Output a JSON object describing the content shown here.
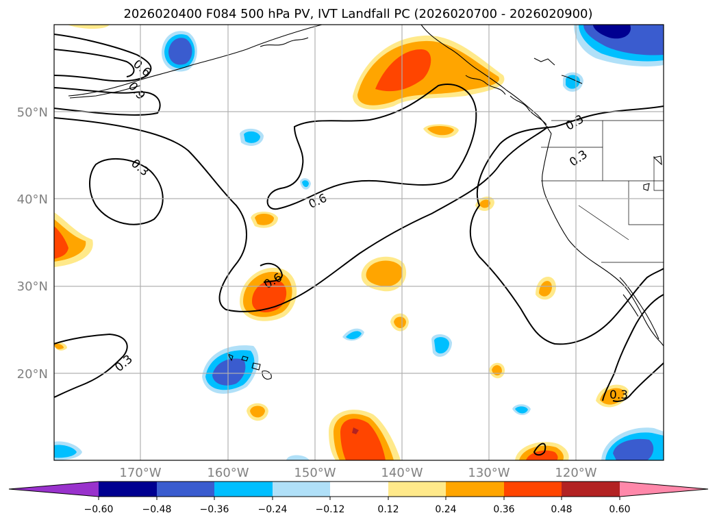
{
  "title": "2026020400 F084 500 hPa PV, IVT Landfall PC (2026020700 - 2026020900)",
  "lat_labels": [
    "50°N",
    "40°N",
    "30°N",
    "20°N"
  ],
  "lon_labels": [
    "170°W",
    "160°W",
    "150°W",
    "140°W",
    "130°W",
    "120°W"
  ],
  "colorbar": {
    "ticks": [
      "−0.60",
      "−0.48",
      "−0.36",
      "−0.24",
      "−0.12",
      "0.12",
      "0.24",
      "0.36",
      "0.48",
      "0.60"
    ],
    "colors": {
      "under": "#9932cc",
      "bin1": "#000090",
      "bin2": "#3a5ccf",
      "bin3": "#00bfff",
      "bin4": "#b0e0f8",
      "bin5": "#ffffff",
      "bin6": "#ffe98a",
      "bin7": "#ffa500",
      "bin8": "#ff4500",
      "bin9": "#b22222",
      "over": "#ff88aa"
    }
  },
  "contour_labels": [
    "0.6",
    "0.9",
    "0.3",
    "0.6",
    "0.6",
    "0.3",
    "0.3",
    "0.3",
    "0.3"
  ]
}
